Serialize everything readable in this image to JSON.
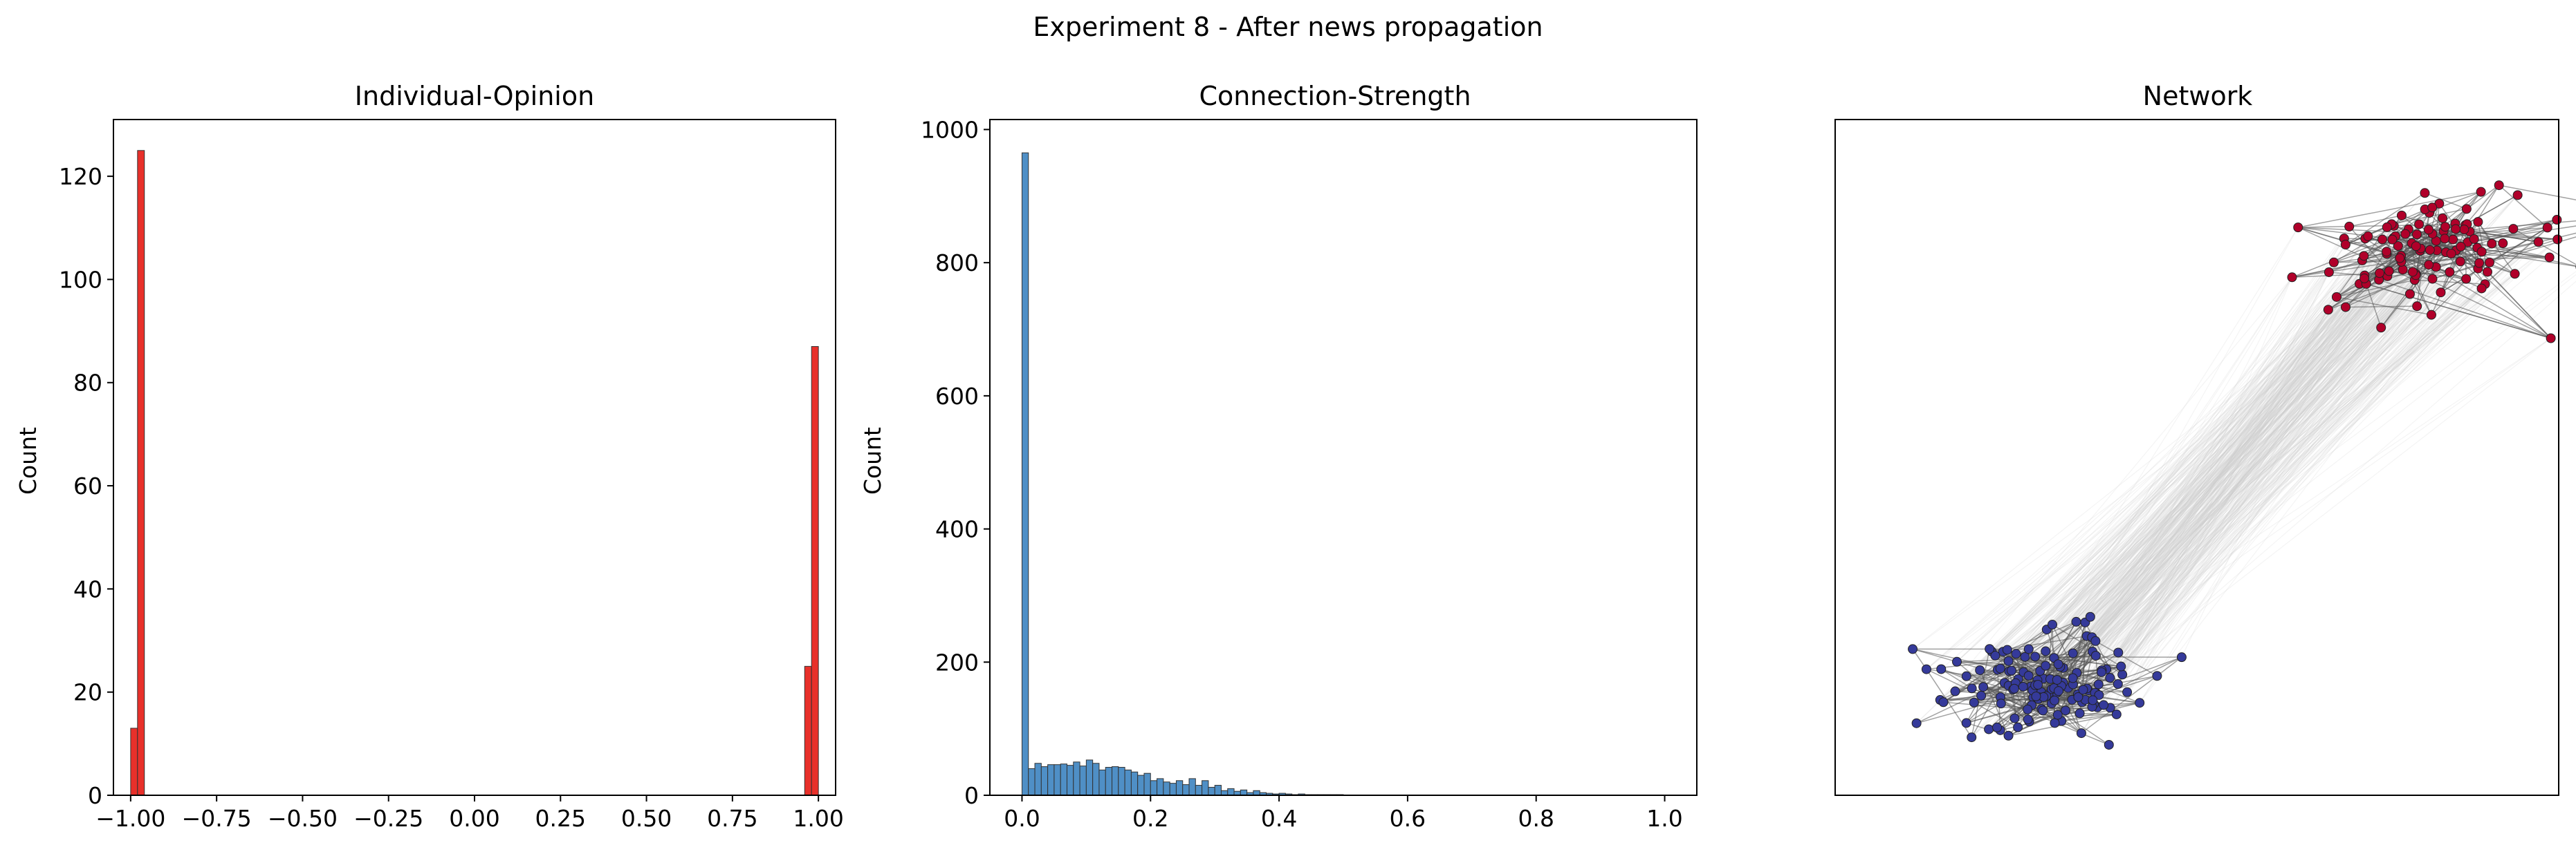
{
  "figure": {
    "title": "Experiment 8 - After news propagation"
  },
  "colors": {
    "opinion_bar": "#e8302a",
    "strength_bar": "#4f8fc6",
    "node_pos": "#b0002a",
    "node_neg": "#353a9a",
    "edge_strong": "#555555",
    "edge_weak": "#cfcfcf"
  },
  "chart_data": [
    {
      "type": "bar",
      "title": "Individual-Opinion",
      "xlabel": "",
      "ylabel": "Count",
      "xlim": [
        -1.05,
        1.05
      ],
      "ylim": [
        0,
        131
      ],
      "grid": false,
      "bin_width": 0.02,
      "xticks": [
        -1.0,
        -0.75,
        -0.5,
        -0.25,
        0.0,
        0.25,
        0.5,
        0.75,
        1.0
      ],
      "xtick_labels": [
        "−1.00",
        "−0.75",
        "−0.50",
        "−0.25",
        "0.00",
        "0.25",
        "0.50",
        "0.75",
        "1.00"
      ],
      "yticks": [
        0,
        20,
        40,
        60,
        80,
        100,
        120
      ],
      "ytick_labels": [
        "0",
        "20",
        "40",
        "60",
        "80",
        "100",
        "120"
      ],
      "bins": [
        {
          "x0": -1.0,
          "count": 13
        },
        {
          "x0": -0.98,
          "count": 125
        },
        {
          "x0": 0.96,
          "count": 25
        },
        {
          "x0": 0.98,
          "count": 87
        }
      ]
    },
    {
      "type": "bar",
      "title": "Connection-Strength",
      "xlabel": "",
      "ylabel": "Count",
      "xlim": [
        -0.05,
        1.05
      ],
      "ylim": [
        0,
        1015
      ],
      "grid": false,
      "bin_width": 0.01,
      "xticks": [
        0.0,
        0.2,
        0.4,
        0.6,
        0.8,
        1.0
      ],
      "xtick_labels": [
        "0.0",
        "0.2",
        "0.4",
        "0.6",
        "0.8",
        "1.0"
      ],
      "yticks": [
        0,
        200,
        400,
        600,
        800,
        1000
      ],
      "ytick_labels": [
        "0",
        "200",
        "400",
        "600",
        "800",
        "1000"
      ],
      "bin_start": 0.0,
      "counts": [
        965,
        40,
        48,
        43,
        46,
        46,
        47,
        45,
        50,
        44,
        53,
        48,
        38,
        42,
        43,
        42,
        38,
        35,
        30,
        33,
        22,
        25,
        20,
        18,
        22,
        16,
        25,
        15,
        22,
        12,
        15,
        7,
        10,
        6,
        8,
        4,
        7,
        4,
        3,
        2,
        3,
        2,
        1,
        2,
        1,
        1,
        1,
        1,
        1,
        1
      ]
    },
    {
      "type": "network",
      "title": "Network",
      "clusters": [
        {
          "name": "positive",
          "cx": 0.82,
          "cy": 0.81,
          "nodes": 112
        },
        {
          "name": "negative",
          "cx": 0.3,
          "cy": 0.16,
          "nodes": 138
        }
      ]
    }
  ]
}
